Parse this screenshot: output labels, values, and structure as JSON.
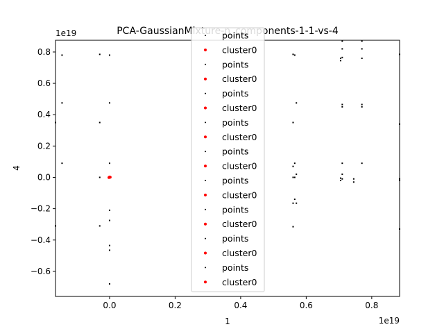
{
  "chart_data": {
    "type": "scatter",
    "title": "PCA-GaussianMixture-n_components-1-1-vs-4",
    "xlabel": "1",
    "ylabel": "4",
    "x_offset_label": "1e19",
    "y_offset_label": "1e19",
    "xlim": [
      -0.165,
      0.885
    ],
    "ylim": [
      -0.76,
      0.875
    ],
    "x_ticks": [
      0.0,
      0.2,
      0.4,
      0.6,
      0.8
    ],
    "y_ticks": [
      -0.6,
      -0.4,
      -0.2,
      0.0,
      0.2,
      0.4,
      0.6,
      0.8
    ],
    "x_tick_labels": [
      "0.0",
      "0.2",
      "0.4",
      "0.6",
      "0.8"
    ],
    "y_tick_labels": [
      "−0.6",
      "−0.4",
      "−0.2",
      "0.0",
      "0.2",
      "0.4",
      "0.6",
      "0.8"
    ],
    "grid": false,
    "legend_position": "center",
    "legend": [
      {
        "label": "points",
        "color": "#000000"
      },
      {
        "label": "cluster0",
        "color": "#ff0000"
      },
      {
        "label": "points",
        "color": "#000000"
      },
      {
        "label": "cluster0",
        "color": "#ff0000"
      },
      {
        "label": "points",
        "color": "#000000"
      },
      {
        "label": "cluster0",
        "color": "#ff0000"
      },
      {
        "label": "points",
        "color": "#000000"
      },
      {
        "label": "cluster0",
        "color": "#ff0000"
      },
      {
        "label": "points",
        "color": "#000000"
      },
      {
        "label": "cluster0",
        "color": "#ff0000"
      },
      {
        "label": "points",
        "color": "#000000"
      },
      {
        "label": "cluster0",
        "color": "#ff0000"
      },
      {
        "label": "points",
        "color": "#000000"
      },
      {
        "label": "cluster0",
        "color": "#ff0000"
      },
      {
        "label": "points",
        "color": "#000000"
      },
      {
        "label": "cluster0",
        "color": "#ff0000"
      },
      {
        "label": "points",
        "color": "#000000"
      },
      {
        "label": "cluster0",
        "color": "#ff0000"
      }
    ],
    "series": [
      {
        "name": "points",
        "color": "#000000",
        "x": [
          -0.145,
          -0.145,
          -0.145,
          -0.03,
          -0.03,
          -0.03,
          -0.03,
          0.0,
          0.0,
          0.0,
          0.0,
          0.0,
          0.0,
          0.0,
          0.0,
          0.0,
          -0.165,
          -0.165,
          0.56,
          0.565,
          0.56,
          0.57,
          0.56,
          0.565,
          0.57,
          0.56,
          0.565,
          0.57,
          0.56,
          0.56,
          0.565,
          0.705,
          0.705,
          0.71,
          0.71,
          0.71,
          0.71,
          0.71,
          0.705,
          0.71,
          0.745,
          0.745,
          0.77,
          0.77,
          0.77,
          0.77,
          0.77,
          0.77,
          0.885,
          0.885,
          0.885,
          0.885,
          0.885,
          0.71,
          0.71,
          0.705
        ],
        "y": [
          0.78,
          0.475,
          0.09,
          0.785,
          0.35,
          0.0,
          -0.31,
          0.78,
          0.475,
          0.09,
          0.0,
          -0.21,
          -0.275,
          -0.435,
          -0.465,
          -0.68,
          0.35,
          -0.31,
          0.785,
          0.78,
          0.35,
          0.475,
          0.07,
          0.09,
          0.02,
          0.0,
          -0.14,
          -0.165,
          -0.315,
          -0.165,
          0.0,
          0.745,
          0.76,
          0.765,
          0.82,
          0.87,
          0.465,
          0.45,
          -0.02,
          0.09,
          -0.01,
          -0.03,
          0.87,
          0.82,
          0.76,
          0.465,
          0.45,
          0.09,
          0.785,
          0.34,
          -0.01,
          -0.02,
          -0.33,
          0.02,
          -0.01,
          -0.005
        ]
      },
      {
        "name": "cluster0",
        "color": "#ff0000",
        "x": [
          0.0,
          0.002,
          -0.002,
          0.0
        ],
        "y": [
          0.0,
          0.001,
          -0.001,
          0.002
        ]
      }
    ]
  }
}
